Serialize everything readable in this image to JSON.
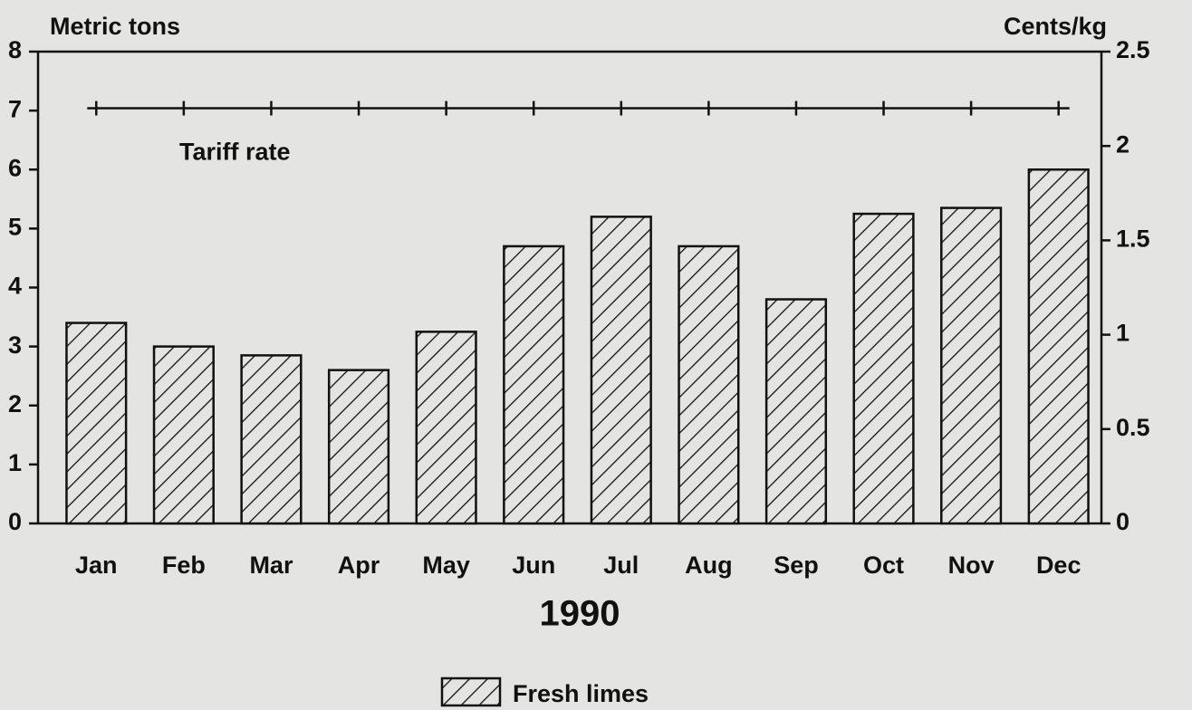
{
  "chart_data": {
    "type": "bar",
    "y_label": "Metric tons",
    "y2_label": "Cents/kg",
    "x_label": "1990",
    "categories": [
      "Jan",
      "Feb",
      "Mar",
      "Apr",
      "May",
      "Jun",
      "Jul",
      "Aug",
      "Sep",
      "Oct",
      "Nov",
      "Dec"
    ],
    "series": [
      {
        "name": "Fresh limes",
        "color": "#111111",
        "values": [
          3.4,
          3.0,
          2.85,
          2.6,
          3.25,
          4.7,
          5.2,
          4.7,
          3.8,
          5.25,
          5.35,
          6.0
        ]
      },
      {
        "name": "Tariff rate",
        "color": "#111111",
        "axis": "y2",
        "values": [
          2.2,
          2.2,
          2.2,
          2.2,
          2.2,
          2.2,
          2.2,
          2.2,
          2.2,
          2.2,
          2.2,
          2.2
        ]
      }
    ],
    "ylim": [
      0,
      8
    ],
    "yticks": [
      0,
      1,
      2,
      3,
      4,
      5,
      6,
      7,
      8
    ],
    "y2lim": [
      0,
      2.5
    ],
    "y2ticks": [
      0,
      0.5,
      1,
      1.5,
      2,
      2.5
    ]
  }
}
